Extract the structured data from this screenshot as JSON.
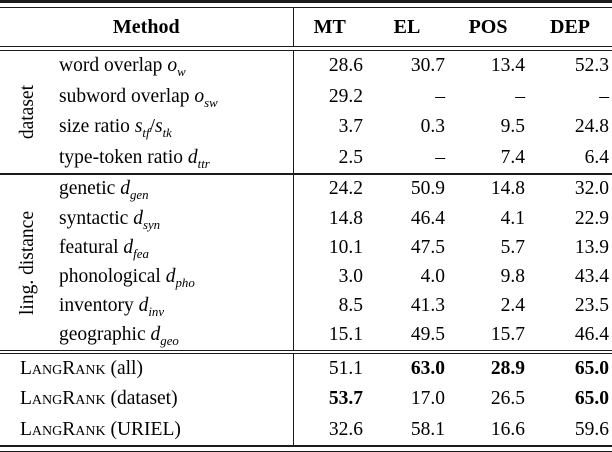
{
  "page": {
    "background": "#ffffff",
    "text_color": "#000000",
    "rule_color": "#1b1b1b",
    "missing_value_glyph": "–"
  },
  "table": {
    "header": {
      "method_label": "Method",
      "task_labels": [
        "MT",
        "EL",
        "POS",
        "DEP"
      ]
    },
    "groups": [
      {
        "id": "dataset",
        "group_label": "dataset",
        "rows": [
          {
            "label_parts": [
              [
                "t",
                "word overlap "
              ],
              [
                "i",
                "o"
              ],
              [
                "sub",
                "w"
              ]
            ],
            "cells": [
              {
                "t": "28.6"
              },
              {
                "t": "30.7"
              },
              {
                "t": "13.4"
              },
              {
                "t": "52.3"
              }
            ]
          },
          {
            "label_parts": [
              [
                "t",
                "subword overlap "
              ],
              [
                "i",
                "o"
              ],
              [
                "sub",
                "sw"
              ]
            ],
            "cells": [
              {
                "t": "29.2"
              },
              {
                "t": "–"
              },
              {
                "t": "–"
              },
              {
                "t": "–"
              }
            ]
          },
          {
            "label_parts": [
              [
                "t",
                "size ratio "
              ],
              [
                "i",
                "s"
              ],
              [
                "sub",
                "tf"
              ],
              [
                "t",
                "/"
              ],
              [
                "i",
                "s"
              ],
              [
                "sub",
                "tk"
              ]
            ],
            "cells": [
              {
                "t": "3.7"
              },
              {
                "t": "0.3"
              },
              {
                "t": "9.5"
              },
              {
                "t": "24.8"
              }
            ]
          },
          {
            "label_parts": [
              [
                "t",
                "type-token ratio "
              ],
              [
                "i",
                "d"
              ],
              [
                "sub",
                "ttr"
              ]
            ],
            "cells": [
              {
                "t": "2.5"
              },
              {
                "t": "–"
              },
              {
                "t": "7.4"
              },
              {
                "t": "6.4"
              }
            ]
          }
        ]
      },
      {
        "id": "ling-distance",
        "group_label": "ling. distance",
        "rows": [
          {
            "label_parts": [
              [
                "t",
                "genetic "
              ],
              [
                "i",
                "d"
              ],
              [
                "sub",
                "gen"
              ]
            ],
            "cells": [
              {
                "t": "24.2"
              },
              {
                "t": "50.9"
              },
              {
                "t": "14.8"
              },
              {
                "t": "32.0"
              }
            ]
          },
          {
            "label_parts": [
              [
                "t",
                "syntactic "
              ],
              [
                "i",
                "d"
              ],
              [
                "sub",
                "syn"
              ]
            ],
            "cells": [
              {
                "t": "14.8"
              },
              {
                "t": "46.4"
              },
              {
                "t": "4.1"
              },
              {
                "t": "22.9"
              }
            ]
          },
          {
            "label_parts": [
              [
                "t",
                "featural "
              ],
              [
                "i",
                "d"
              ],
              [
                "sub",
                "fea"
              ]
            ],
            "cells": [
              {
                "t": "10.1"
              },
              {
                "t": "47.5"
              },
              {
                "t": "5.7"
              },
              {
                "t": "13.9"
              }
            ]
          },
          {
            "label_parts": [
              [
                "t",
                "phonological "
              ],
              [
                "i",
                "d"
              ],
              [
                "sub",
                "pho"
              ]
            ],
            "cells": [
              {
                "t": "3.0"
              },
              {
                "t": "4.0"
              },
              {
                "t": "9.8"
              },
              {
                "t": "43.4"
              }
            ]
          },
          {
            "label_parts": [
              [
                "t",
                "inventory "
              ],
              [
                "i",
                "d"
              ],
              [
                "sub",
                "inv"
              ]
            ],
            "cells": [
              {
                "t": "8.5"
              },
              {
                "t": "41.3"
              },
              {
                "t": "2.4"
              },
              {
                "t": "23.5"
              }
            ]
          },
          {
            "label_parts": [
              [
                "t",
                "geographic "
              ],
              [
                "i",
                "d"
              ],
              [
                "sub",
                "geo"
              ]
            ],
            "cells": [
              {
                "t": "15.1"
              },
              {
                "t": "49.5"
              },
              {
                "t": "15.7"
              },
              {
                "t": "46.4"
              }
            ]
          }
        ]
      },
      {
        "id": "langrank",
        "group_label": "",
        "rows": [
          {
            "label_parts": [
              [
                "sc",
                "LangRank"
              ],
              [
                "t",
                " (all)"
              ]
            ],
            "cells": [
              {
                "t": "51.1"
              },
              {
                "t": "63.0",
                "b": true
              },
              {
                "t": "28.9",
                "b": true
              },
              {
                "t": "65.0",
                "b": true
              }
            ]
          },
          {
            "label_parts": [
              [
                "sc",
                "LangRank"
              ],
              [
                "t",
                " (dataset)"
              ]
            ],
            "cells": [
              {
                "t": "53.7",
                "b": true
              },
              {
                "t": "17.0"
              },
              {
                "t": "26.5"
              },
              {
                "t": "65.0",
                "b": true
              }
            ]
          },
          {
            "label_parts": [
              [
                "sc",
                "LangRank"
              ],
              [
                "t",
                " (URIEL)"
              ]
            ],
            "cells": [
              {
                "t": "32.6"
              },
              {
                "t": "58.1"
              },
              {
                "t": "16.6"
              },
              {
                "t": "59.6"
              }
            ]
          }
        ]
      }
    ]
  }
}
